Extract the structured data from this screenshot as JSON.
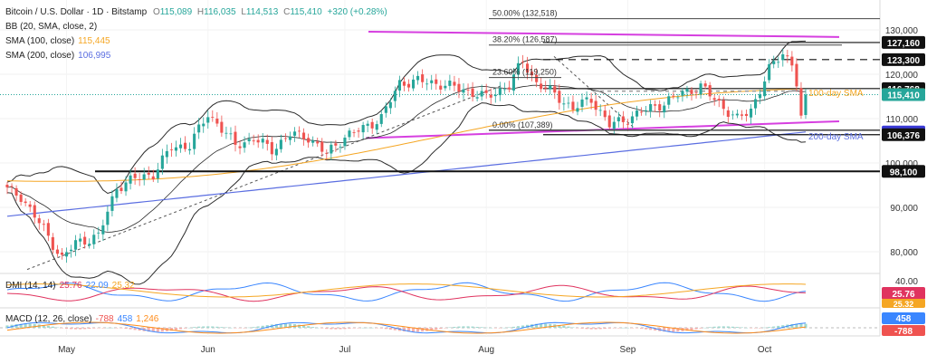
{
  "header": {
    "symbol": "Bitcoin / U.S. Dollar · 1D · Bitstamp",
    "ohlc": [
      {
        "k": "O",
        "v": "115,089"
      },
      {
        "k": "H",
        "v": "116,035"
      },
      {
        "k": "L",
        "v": "114,513"
      },
      {
        "k": "C",
        "v": "115,410"
      }
    ],
    "change": "+320 (+0.28%)"
  },
  "indicators": [
    {
      "label": "BB (20, SMA, close, 2)",
      "value": ""
    },
    {
      "label": "SMA (100, close)",
      "value": "115,445"
    },
    {
      "label": "SMA (200, close)",
      "value": "106,995"
    }
  ],
  "dmi": {
    "label": "DMI (14, 14)",
    "values": [
      "25.76",
      "22.09",
      "25.32"
    ]
  },
  "macd": {
    "label": "MACD (12, 26, close)",
    "values": [
      "-788",
      "458",
      "1,246"
    ]
  },
  "colors": {
    "up": "#26a69a",
    "down": "#ef5350",
    "bb": "#2b2b2b",
    "sma100": "#f5a623",
    "sma200": "#5b6ee1",
    "channel": "#d63fe0",
    "fib": "#777777",
    "adx": "#f5a623",
    "dip": "#3a86ff",
    "dim": "#e0335f",
    "macd": "#3a86ff",
    "signal": "#ff8c1a"
  },
  "chart_data": {
    "type": "candlestick",
    "x_labels": [
      "May",
      "Jun",
      "Jul",
      "Aug",
      "Sep",
      "Oct"
    ],
    "y_ticks": [
      "130,000",
      "120,000",
      "110,000",
      "100,000",
      "90,000",
      "80,000"
    ],
    "levels": [
      {
        "name": "resistance",
        "value": 127160,
        "label": "127,160",
        "style": "solid"
      },
      {
        "name": "resistance",
        "value": 123300,
        "label": "123,300",
        "style": "dashed"
      },
      {
        "name": "resistance",
        "value": 116768,
        "label": "116,768",
        "style": "solid"
      },
      {
        "name": "sma100",
        "value": 115445,
        "label": "115,445"
      },
      {
        "name": "last",
        "value": 115410,
        "label": "115,410"
      },
      {
        "name": "sma200",
        "value": 106995,
        "label": "106,995"
      },
      {
        "name": "support",
        "value": 106376,
        "label": "106,376",
        "style": "solid"
      },
      {
        "name": "support",
        "value": 98100,
        "label": "98,100",
        "style": "solid"
      }
    ],
    "fibonacci": [
      {
        "label": "50.00% (132,518)",
        "value": 132518
      },
      {
        "label": "38.20% (126,587)",
        "value": 126587
      },
      {
        "label": "23.60% (119,250)",
        "value": 119250
      },
      {
        "label": "0.00% (107,389)",
        "value": 107389
      }
    ],
    "annotations": [
      "100-day SMA",
      "200-day SMA"
    ],
    "dmi_scale": [
      "40.00"
    ],
    "dmi_tags": [
      "25.76",
      "25.32"
    ],
    "macd_tags": [
      "458",
      "-788"
    ]
  }
}
